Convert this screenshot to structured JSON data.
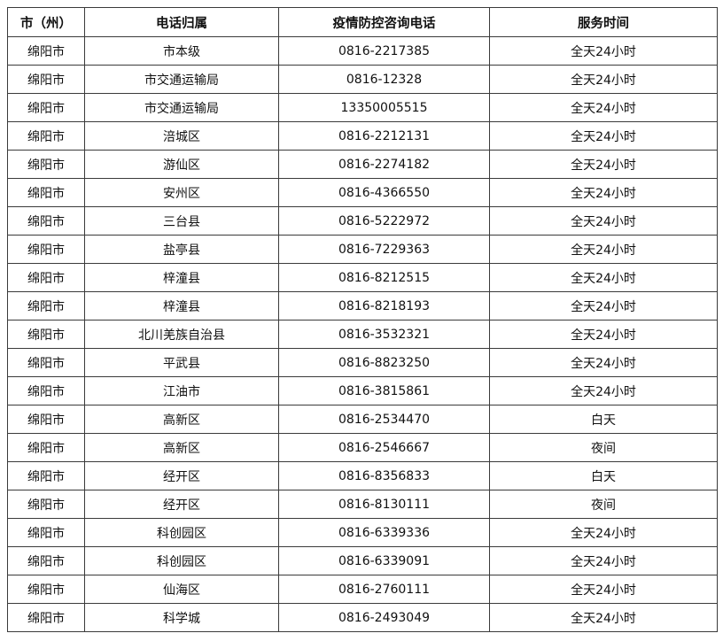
{
  "table": {
    "headers": [
      "市（州）",
      "电话归属",
      "疫情防控咨询电话",
      "服务时间"
    ],
    "rows": [
      [
        "绵阳市",
        "市本级",
        "0816-2217385",
        "全天24小时"
      ],
      [
        "绵阳市",
        "市交通运输局",
        "0816-12328",
        "全天24小时"
      ],
      [
        "绵阳市",
        "市交通运输局",
        "13350005515",
        "全天24小时"
      ],
      [
        "绵阳市",
        "涪城区",
        "0816-2212131",
        "全天24小时"
      ],
      [
        "绵阳市",
        "游仙区",
        "0816-2274182",
        "全天24小时"
      ],
      [
        "绵阳市",
        "安州区",
        "0816-4366550",
        "全天24小时"
      ],
      [
        "绵阳市",
        "三台县",
        "0816-5222972",
        "全天24小时"
      ],
      [
        "绵阳市",
        "盐亭县",
        "0816-7229363",
        "全天24小时"
      ],
      [
        "绵阳市",
        "梓潼县",
        "0816-8212515",
        "全天24小时"
      ],
      [
        "绵阳市",
        "梓潼县",
        "0816-8218193",
        "全天24小时"
      ],
      [
        "绵阳市",
        "北川羌族自治县",
        "0816-3532321",
        "全天24小时"
      ],
      [
        "绵阳市",
        "平武县",
        "0816-8823250",
        "全天24小时"
      ],
      [
        "绵阳市",
        "江油市",
        "0816-3815861",
        "全天24小时"
      ],
      [
        "绵阳市",
        "高新区",
        "0816-2534470",
        "白天"
      ],
      [
        "绵阳市",
        "高新区",
        "0816-2546667",
        "夜间"
      ],
      [
        "绵阳市",
        "经开区",
        "0816-8356833",
        "白天"
      ],
      [
        "绵阳市",
        "经开区",
        "0816-8130111",
        "夜间"
      ],
      [
        "绵阳市",
        "科创园区",
        "0816-6339336",
        "全天24小时"
      ],
      [
        "绵阳市",
        "科创园区",
        "0816-6339091",
        "全天24小时"
      ],
      [
        "绵阳市",
        "仙海区",
        "0816-2760111",
        "全天24小时"
      ],
      [
        "绵阳市",
        "科学城",
        "0816-2493049",
        "全天24小时"
      ]
    ]
  }
}
